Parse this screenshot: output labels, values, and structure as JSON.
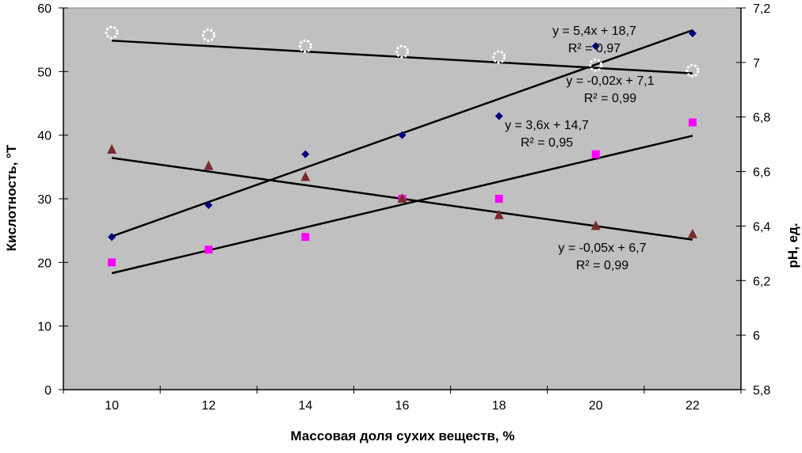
{
  "chart_data": {
    "type": "scatter",
    "xlabel": "Массовая доля сухих веществ, %",
    "ylabel": "Кислотность, °T",
    "y2label": "pH, ед.",
    "categories": [
      "10",
      "12",
      "14",
      "16",
      "18",
      "20",
      "22"
    ],
    "ylim": [
      0,
      60
    ],
    "y_ticks": [
      "0",
      "10",
      "20",
      "30",
      "40",
      "50",
      "60"
    ],
    "y2lim": [
      5.8,
      7.2
    ],
    "y2_ticks": [
      "5,8",
      "6",
      "6,2",
      "6,4",
      "6,6",
      "6,8",
      "7",
      "7,2"
    ],
    "plot_background": "#c0c0c0",
    "grid": false,
    "legend": "none",
    "series": [
      {
        "axis": "left",
        "marker": "diamond",
        "color": "#000080",
        "values": [
          24,
          29,
          37,
          40,
          43,
          54,
          56
        ],
        "trend": {
          "slope": 5.4,
          "intercept": 18.7,
          "equation": "y = 5,4x + 18,7",
          "r2": "R² = 0,97"
        }
      },
      {
        "axis": "left",
        "marker": "square",
        "color": "#ff00ff",
        "values": [
          20,
          22,
          24,
          30,
          30,
          37,
          42
        ],
        "trend": {
          "slope": 3.6,
          "intercept": 14.7,
          "equation": "y = 3,6x + 14,7",
          "r2": "R² = 0,95"
        }
      },
      {
        "axis": "right",
        "marker": "triangle",
        "color": "#7a2a2a",
        "values": [
          6.68,
          6.62,
          6.58,
          6.5,
          6.44,
          6.4,
          6.37
        ],
        "trend": {
          "slope": -0.05,
          "intercept": 6.7,
          "equation": "y = -0,05x + 6,7",
          "r2": "R² = 0,99"
        }
      },
      {
        "axis": "right",
        "marker": "circle",
        "color": "#ffffff",
        "values": [
          7.11,
          7.1,
          7.06,
          7.04,
          7.02,
          6.99,
          6.97
        ],
        "trend": {
          "slope": -0.02,
          "intercept": 7.1,
          "equation": "y = -0,02x + 7,1",
          "r2": "R² = 0,99"
        }
      }
    ]
  }
}
